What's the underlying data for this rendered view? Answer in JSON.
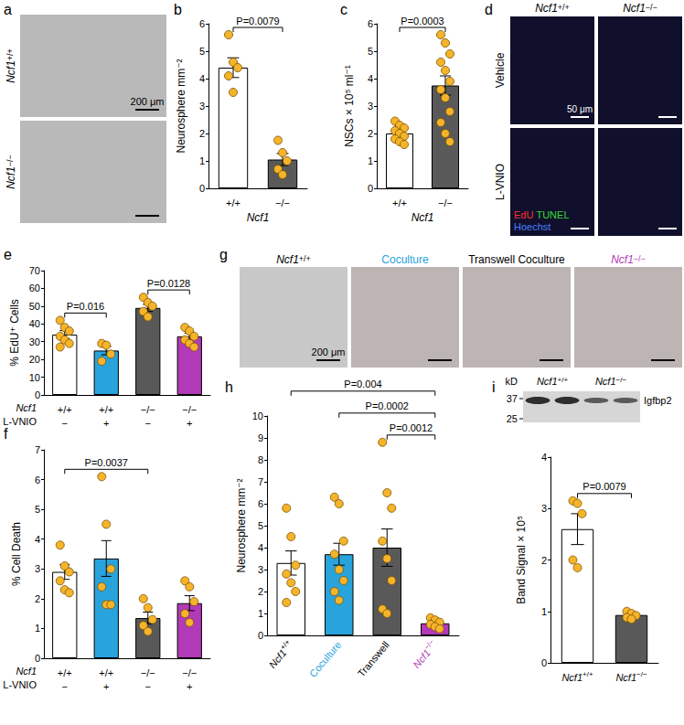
{
  "chart_data": [
    {
      "panel": "b",
      "type": "bar",
      "categories": [
        "+/+",
        "−/−"
      ],
      "x_label": "Ncf1",
      "y_label": "Neurosphere mm⁻²",
      "values": [
        4.4,
        1.05
      ],
      "errors": [
        0.36,
        0.22
      ],
      "points": [
        [
          5.6,
          4.6,
          4.4,
          4.1,
          3.5
        ],
        [
          1.75,
          1.3,
          1.0,
          0.7,
          0.5
        ]
      ],
      "colors": [
        "#ffffff",
        "#595959"
      ],
      "ylim": [
        0,
        6
      ],
      "yticks": [
        0,
        1,
        2,
        3,
        4,
        5,
        6
      ],
      "grid": false,
      "annotations": [
        {
          "from": 0,
          "to": 1,
          "text": "P=0.0079"
        }
      ]
    },
    {
      "panel": "c",
      "type": "bar",
      "categories": [
        "+/+",
        "−/−"
      ],
      "x_label": "Ncf1",
      "y_label": "NSCs × 10⁵ ml⁻¹",
      "values": [
        2.0,
        3.75
      ],
      "errors": [
        0.1,
        0.35
      ],
      "points": [
        [
          2.45,
          2.3,
          2.2,
          2.1,
          2.0,
          1.9,
          1.8,
          1.7,
          1.6
        ],
        [
          5.6,
          5.3,
          4.9,
          4.6,
          4.3,
          3.9,
          3.6,
          3.3,
          2.8,
          2.4,
          2.0,
          1.7
        ]
      ],
      "colors": [
        "#ffffff",
        "#595959"
      ],
      "ylim": [
        0,
        6
      ],
      "yticks": [
        0,
        1,
        2,
        3,
        4,
        5,
        6
      ],
      "grid": false,
      "annotations": [
        {
          "from": 0,
          "to": 1,
          "text": "P=0.0003"
        }
      ]
    },
    {
      "panel": "e",
      "type": "bar",
      "categories": [
        "+/+",
        "+/+",
        "−/−",
        "−/−"
      ],
      "x_label": "Ncf1",
      "treatment": {
        "label": "L-VNIO",
        "values": [
          "−",
          "+",
          "−",
          "+"
        ]
      },
      "y_label": "% EdU⁺ Cells",
      "values": [
        34,
        25,
        49,
        33
      ],
      "errors": [
        2.2,
        2.4,
        2.0,
        1.8
      ],
      "points": [
        [
          42,
          38,
          36,
          33,
          31,
          29,
          27
        ],
        [
          29,
          28,
          23,
          19
        ],
        [
          55,
          52,
          50,
          47,
          44
        ],
        [
          38,
          36,
          33,
          31,
          29,
          27
        ]
      ],
      "colors": [
        "#ffffff",
        "#29a3dc",
        "#595959",
        "#b23ab8"
      ],
      "ylim": [
        0,
        70
      ],
      "yticks": [
        0,
        10,
        20,
        30,
        40,
        50,
        60,
        70
      ],
      "grid": false,
      "annotations": [
        {
          "from": 0,
          "to": 1,
          "text": "P=0.016"
        },
        {
          "from": 2,
          "to": 3,
          "text": "P=0.0128"
        }
      ]
    },
    {
      "panel": "f",
      "type": "bar",
      "categories": [
        "+/+",
        "+/+",
        "−/−",
        "−/−"
      ],
      "x_label": "Ncf1",
      "treatment": {
        "label": "L-VNIO",
        "values": [
          "−",
          "+",
          "−",
          "+"
        ]
      },
      "y_label": "% Cell Death",
      "values": [
        2.9,
        3.35,
        1.35,
        1.85
      ],
      "errors": [
        0.25,
        0.6,
        0.2,
        0.25
      ],
      "points": [
        [
          3.8,
          3.1,
          2.9,
          2.6,
          2.3,
          2.2
        ],
        [
          6.1,
          4.5,
          3.0,
          2.4,
          1.8,
          1.8
        ],
        [
          2.0,
          1.7,
          1.3,
          1.1,
          0.9
        ],
        [
          2.6,
          2.4,
          1.9,
          1.5,
          1.2
        ]
      ],
      "colors": [
        "#ffffff",
        "#29a3dc",
        "#595959",
        "#b23ab8"
      ],
      "ylim": [
        0,
        7
      ],
      "yticks": [
        0,
        1,
        2,
        3,
        4,
        5,
        6,
        7
      ],
      "grid": false,
      "annotations": [
        {
          "from": 0,
          "to": 2,
          "text": "P=0.0037"
        }
      ]
    },
    {
      "panel": "h",
      "type": "bar",
      "categories": [
        "Ncf1+/+",
        "Coculture",
        "Transwell",
        "Ncf1−/−"
      ],
      "y_label": "Neurosphere mm⁻²",
      "values": [
        3.3,
        3.7,
        4.0,
        0.55
      ],
      "errors": [
        0.55,
        0.5,
        0.85,
        0.08
      ],
      "points": [
        [
          5.8,
          4.5,
          3.2,
          2.8,
          2.4,
          2.0,
          1.5
        ],
        [
          6.3,
          6.0,
          4.3,
          3.7,
          3.0,
          2.5,
          2.0,
          1.6
        ],
        [
          8.8,
          6.5,
          5.8,
          4.3,
          3.5,
          2.5,
          1.2,
          1.0
        ],
        [
          0.8,
          0.7,
          0.6,
          0.5,
          0.4,
          0.3
        ]
      ],
      "colors": [
        "#ffffff",
        "#29a3dc",
        "#595959",
        "#b23ab8"
      ],
      "ylim": [
        0,
        10
      ],
      "yticks": [
        0,
        1,
        2,
        3,
        4,
        5,
        6,
        7,
        8,
        9,
        10
      ],
      "grid": false,
      "annotations": [
        {
          "from": 0,
          "to": 3,
          "text": "P=0.004"
        },
        {
          "from": 1,
          "to": 3,
          "text": "P=0.0002"
        },
        {
          "from": 2,
          "to": 3,
          "text": "P=0.0012"
        }
      ]
    },
    {
      "panel": "i",
      "type": "bar",
      "categories": [
        "Ncf1+/+",
        "Ncf1−/−"
      ],
      "y_label": "Band Signal × 10⁵",
      "values": [
        2.6,
        0.93
      ],
      "errors": [
        0.3,
        0.05
      ],
      "points": [
        [
          3.15,
          3.1,
          2.9,
          2.0,
          1.85
        ],
        [
          1.0,
          0.96,
          0.92,
          0.88,
          0.85
        ]
      ],
      "colors": [
        "#ffffff",
        "#595959"
      ],
      "ylim": [
        0,
        4
      ],
      "yticks": [
        0,
        1,
        2,
        3,
        4
      ],
      "grid": false,
      "annotations": [
        {
          "from": 0,
          "to": 1,
          "text": "P=0.0079"
        }
      ],
      "blot": {
        "unit": "kD",
        "markers": [
          37,
          25
        ],
        "lanes": [
          "Ncf1+/+",
          "Ncf1−/−"
        ],
        "protein": "Igfbp2"
      }
    }
  ],
  "image_panels": [
    {
      "panel": "a",
      "rows": [
        "Ncf1+/+",
        "Ncf1−/−"
      ],
      "scale_bar": "200 μm"
    },
    {
      "panel": "d",
      "columns": [
        "Ncf1+/+",
        "Ncf1−/−"
      ],
      "rows": [
        "Vehicle",
        "L-VNIO"
      ],
      "channels": [
        {
          "name": "EdU",
          "color": "#ff3030"
        },
        {
          "name": "TUNEL",
          "color": "#33dd33"
        },
        {
          "name": "Hoechst",
          "color": "#4a7dff"
        }
      ],
      "scale_bar": "50 μm"
    },
    {
      "panel": "g",
      "columns": [
        {
          "text": "Ncf1+/+",
          "color": "#000000"
        },
        {
          "text": "Coculture",
          "color": "#29a3dc"
        },
        {
          "text": "Transwell Coculture",
          "color": "#000000"
        },
        {
          "text": "Ncf1−/−",
          "color": "#b23ab8"
        }
      ],
      "scale_bar": "200 μm"
    }
  ]
}
